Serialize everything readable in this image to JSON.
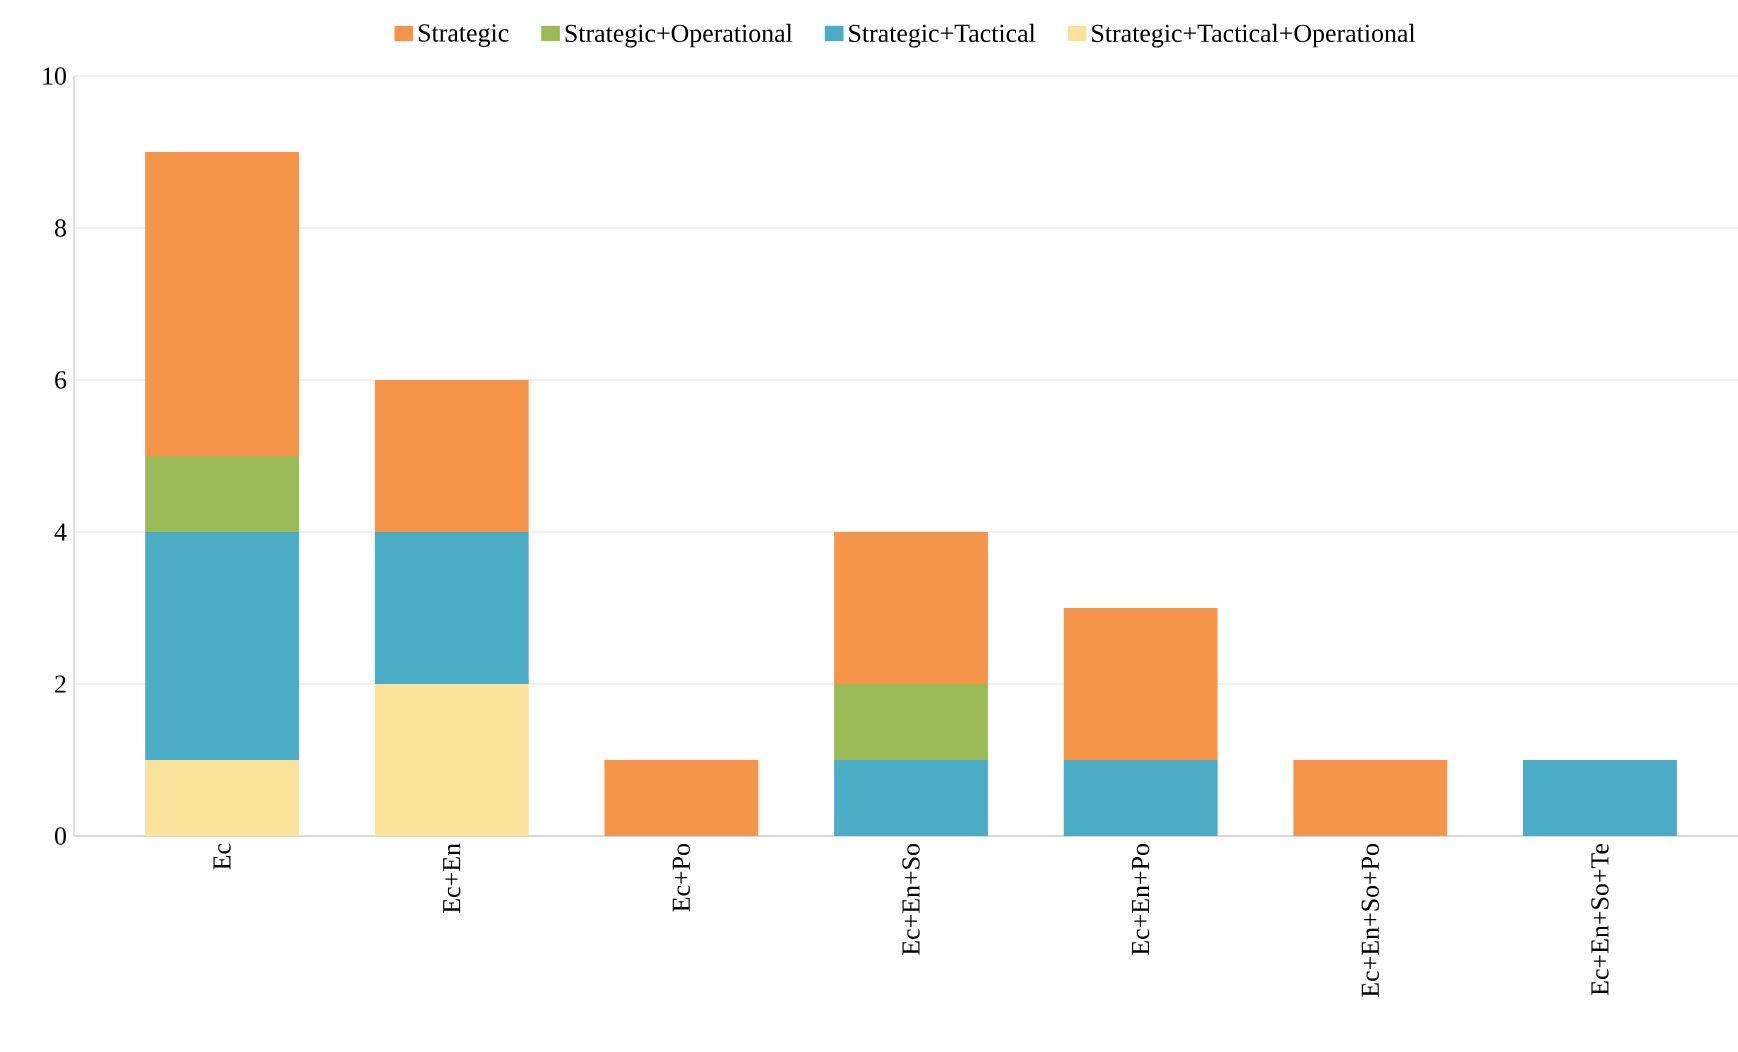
{
  "chart_data": {
    "type": "bar",
    "stacked": true,
    "categories": [
      "Ec",
      "Ec+En",
      "Ec+Po",
      "Ec+En+So",
      "Ec+En+Po",
      "Ec+En+So+Po",
      "Ec+En+So+Te"
    ],
    "series": [
      {
        "name": "Strategic+Tactical+Operational",
        "color": "#fbe29b",
        "values": [
          1,
          2,
          0,
          0,
          0,
          0,
          0
        ]
      },
      {
        "name": "Strategic+Tactical",
        "color": "#4bacc6",
        "values": [
          3,
          2,
          0,
          1,
          1,
          0,
          1
        ]
      },
      {
        "name": "Strategic+Operational",
        "color": "#9bbb59",
        "values": [
          1,
          0,
          0,
          1,
          0,
          0,
          0
        ]
      },
      {
        "name": "Strategic",
        "color": "#f4954a",
        "values": [
          4,
          2,
          1,
          2,
          2,
          1,
          0
        ]
      }
    ],
    "ylim": [
      0,
      10
    ],
    "yticks": [
      0,
      2,
      4,
      6,
      8,
      10
    ],
    "grid": "y",
    "legend": "top"
  }
}
